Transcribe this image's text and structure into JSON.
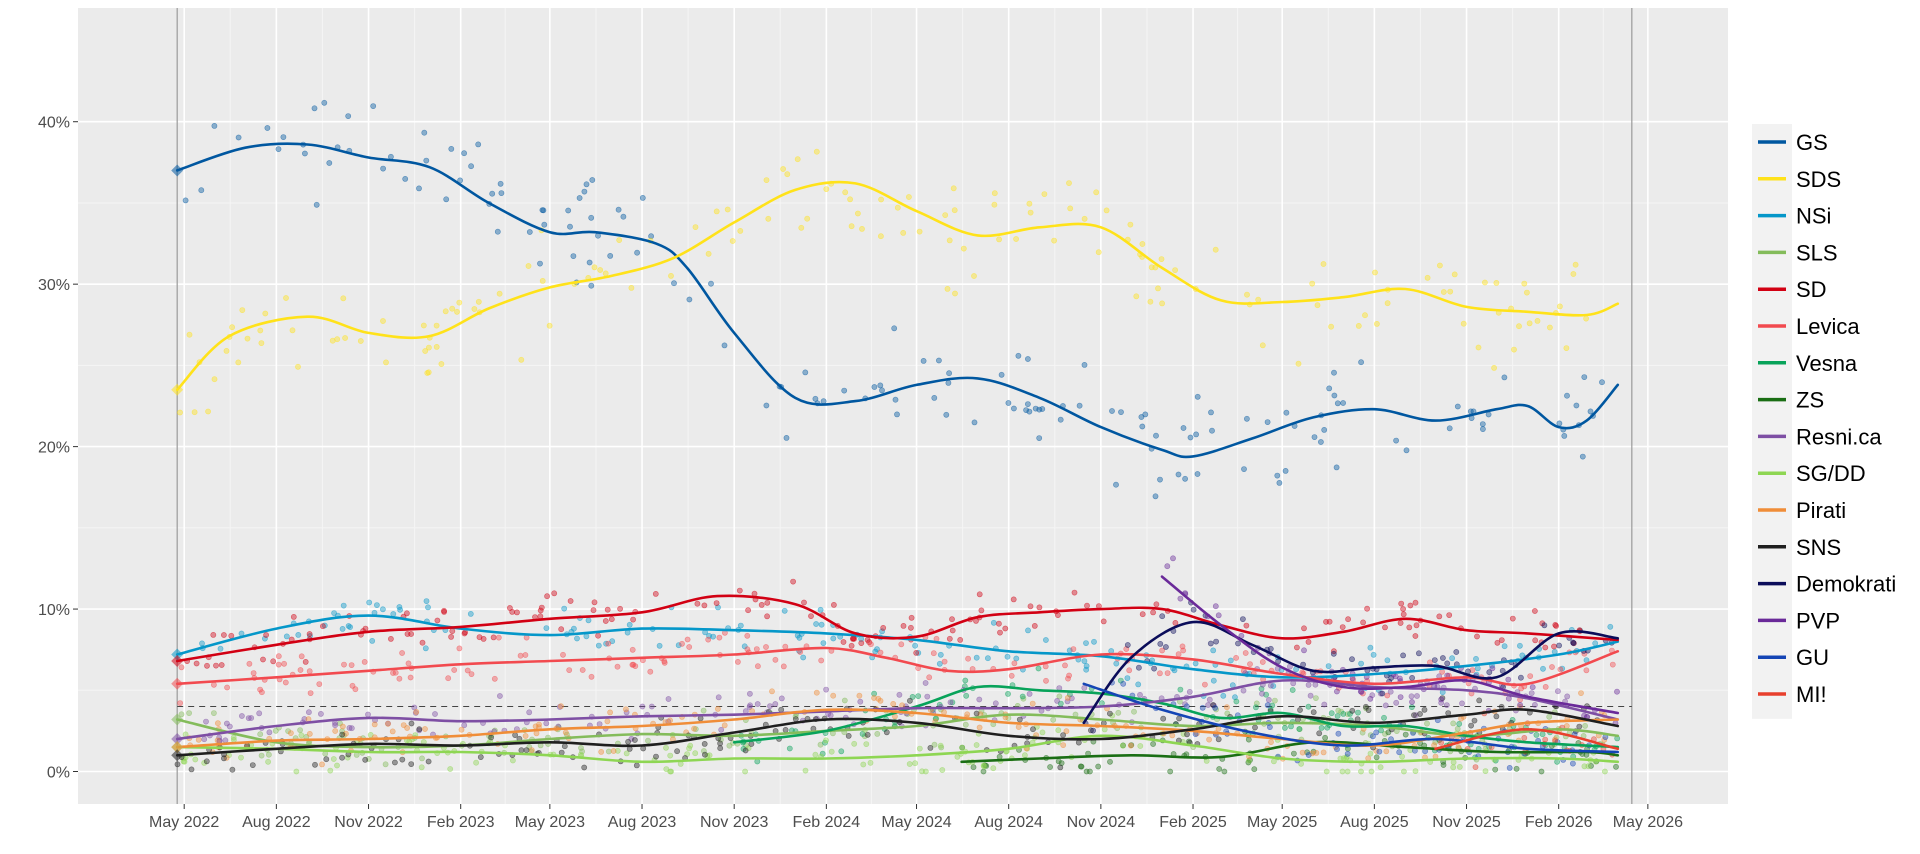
{
  "chart_data": {
    "type": "line",
    "title": "",
    "xlabel": "",
    "ylabel": "",
    "x_range": [
      "2022-01-15",
      "2026-07-20"
    ],
    "ylim": [
      -2,
      47
    ],
    "grid": true,
    "legend_position": "right",
    "x_ticks": [
      {
        "date": "2022-05-01",
        "label": "May 2022"
      },
      {
        "date": "2022-08-01",
        "label": "Aug 2022"
      },
      {
        "date": "2022-11-01",
        "label": "Nov 2022"
      },
      {
        "date": "2023-02-01",
        "label": "Feb 2023"
      },
      {
        "date": "2023-05-01",
        "label": "May 2023"
      },
      {
        "date": "2023-08-01",
        "label": "Aug 2023"
      },
      {
        "date": "2023-11-01",
        "label": "Nov 2023"
      },
      {
        "date": "2024-02-01",
        "label": "Feb 2024"
      },
      {
        "date": "2024-05-01",
        "label": "May 2024"
      },
      {
        "date": "2024-08-01",
        "label": "Aug 2024"
      },
      {
        "date": "2024-11-01",
        "label": "Nov 2024"
      },
      {
        "date": "2025-02-01",
        "label": "Feb 2025"
      },
      {
        "date": "2025-05-01",
        "label": "May 2025"
      },
      {
        "date": "2025-08-01",
        "label": "Aug 2025"
      },
      {
        "date": "2025-11-01",
        "label": "Nov 2025"
      },
      {
        "date": "2026-02-01",
        "label": "Feb 2026"
      },
      {
        "date": "2026-05-01",
        "label": "May 2026"
      }
    ],
    "y_ticks": [
      {
        "value": 0,
        "label": "0%"
      },
      {
        "value": 10,
        "label": "10%"
      },
      {
        "value": 20,
        "label": "20%"
      },
      {
        "value": 30,
        "label": "30%"
      },
      {
        "value": 40,
        "label": "40%"
      }
    ],
    "reference_lines": {
      "vertical_dates": [
        "2022-04-24",
        "2026-04-15"
      ],
      "threshold_value": 4
    },
    "series": [
      {
        "name": "GS",
        "color": "#0057a0",
        "points": [
          [
            "2022-04-24",
            37
          ],
          [
            "2022-07-01",
            38.4
          ],
          [
            "2022-09-01",
            38.6
          ],
          [
            "2022-11-01",
            37.8
          ],
          [
            "2023-01-01",
            37.2
          ],
          [
            "2023-03-01",
            35
          ],
          [
            "2023-05-01",
            33.2
          ],
          [
            "2023-06-15",
            33.2
          ],
          [
            "2023-08-15",
            32.5
          ],
          [
            "2023-09-15",
            31
          ],
          [
            "2023-11-01",
            27
          ],
          [
            "2024-01-01",
            23
          ],
          [
            "2024-03-01",
            22.8
          ],
          [
            "2024-05-01",
            23.8
          ],
          [
            "2024-07-01",
            24.2
          ],
          [
            "2024-09-01",
            23
          ],
          [
            "2024-11-01",
            21.2
          ],
          [
            "2025-01-01",
            19.8
          ],
          [
            "2025-02-01",
            19.4
          ],
          [
            "2025-04-01",
            20.5
          ],
          [
            "2025-06-01",
            21.8
          ],
          [
            "2025-08-01",
            22.3
          ],
          [
            "2025-10-01",
            21.6
          ],
          [
            "2025-12-01",
            22.3
          ],
          [
            "2026-01-01",
            22.5
          ],
          [
            "2026-02-01",
            21.2
          ],
          [
            "2026-03-01",
            21.6
          ],
          [
            "2026-04-01",
            23.8
          ]
        ]
      },
      {
        "name": "SDS",
        "color": "#ffe21a",
        "points": [
          [
            "2022-04-24",
            23.5
          ],
          [
            "2022-06-15",
            26.8
          ],
          [
            "2022-09-01",
            28
          ],
          [
            "2022-11-01",
            27
          ],
          [
            "2023-01-01",
            26.8
          ],
          [
            "2023-03-01",
            28.5
          ],
          [
            "2023-05-01",
            29.8
          ],
          [
            "2023-07-01",
            30.5
          ],
          [
            "2023-09-01",
            31.6
          ],
          [
            "2023-11-01",
            33.8
          ],
          [
            "2024-01-01",
            35.8
          ],
          [
            "2024-03-01",
            36.2
          ],
          [
            "2024-05-01",
            34.5
          ],
          [
            "2024-07-01",
            33
          ],
          [
            "2024-09-01",
            33.5
          ],
          [
            "2024-11-01",
            33.5
          ],
          [
            "2025-01-01",
            31
          ],
          [
            "2025-03-01",
            29
          ],
          [
            "2025-05-01",
            28.9
          ],
          [
            "2025-07-01",
            29.2
          ],
          [
            "2025-09-01",
            29.7
          ],
          [
            "2025-11-01",
            28.6
          ],
          [
            "2026-01-01",
            28.3
          ],
          [
            "2026-03-01",
            28.1
          ],
          [
            "2026-04-01",
            28.8
          ]
        ]
      },
      {
        "name": "NSi",
        "color": "#0597c9",
        "points": [
          [
            "2022-04-24",
            7.2
          ],
          [
            "2022-08-01",
            8.8
          ],
          [
            "2022-11-01",
            9.6
          ],
          [
            "2023-02-01",
            8.8
          ],
          [
            "2023-05-01",
            8.4
          ],
          [
            "2023-08-01",
            8.8
          ],
          [
            "2023-11-01",
            8.7
          ],
          [
            "2024-02-01",
            8.5
          ],
          [
            "2024-05-01",
            8.1
          ],
          [
            "2024-08-01",
            7.4
          ],
          [
            "2024-11-01",
            7.1
          ],
          [
            "2025-02-01",
            6.3
          ],
          [
            "2025-05-01",
            5.8
          ],
          [
            "2025-08-01",
            6
          ],
          [
            "2025-11-01",
            6.5
          ],
          [
            "2026-02-01",
            7.2
          ],
          [
            "2026-04-01",
            8
          ]
        ]
      },
      {
        "name": "SLS",
        "color": "#84bc5b",
        "points": [
          [
            "2022-04-24",
            3.2
          ],
          [
            "2022-08-01",
            1.8
          ],
          [
            "2022-11-01",
            1.5
          ],
          [
            "2023-02-01",
            1.6
          ],
          [
            "2023-05-01",
            2
          ],
          [
            "2023-08-01",
            2.3
          ],
          [
            "2023-11-01",
            2.2
          ],
          [
            "2024-02-01",
            2.5
          ],
          [
            "2024-05-01",
            2.8
          ],
          [
            "2024-08-01",
            3.5
          ],
          [
            "2024-11-01",
            3.2
          ],
          [
            "2025-02-01",
            2.8
          ],
          [
            "2025-05-01",
            3
          ],
          [
            "2025-08-01",
            2.8
          ],
          [
            "2025-11-01",
            2.2
          ],
          [
            "2026-02-01",
            2.6
          ],
          [
            "2026-04-01",
            2.2
          ]
        ]
      },
      {
        "name": "SD",
        "color": "#d20013",
        "points": [
          [
            "2022-04-24",
            6.8
          ],
          [
            "2022-08-01",
            7.8
          ],
          [
            "2022-11-01",
            8.6
          ],
          [
            "2023-02-01",
            8.9
          ],
          [
            "2023-05-01",
            9.4
          ],
          [
            "2023-08-01",
            9.8
          ],
          [
            "2023-10-15",
            10.8
          ],
          [
            "2024-01-01",
            10.3
          ],
          [
            "2024-03-01",
            8.5
          ],
          [
            "2024-05-01",
            8.3
          ],
          [
            "2024-07-01",
            9.5
          ],
          [
            "2024-09-01",
            9.8
          ],
          [
            "2024-11-01",
            10
          ],
          [
            "2025-01-01",
            10
          ],
          [
            "2025-03-01",
            9
          ],
          [
            "2025-05-01",
            8.2
          ],
          [
            "2025-07-01",
            8.6
          ],
          [
            "2025-09-01",
            9.4
          ],
          [
            "2025-11-01",
            8.7
          ],
          [
            "2026-01-01",
            8.5
          ],
          [
            "2026-04-01",
            8.1
          ]
        ]
      },
      {
        "name": "Levica",
        "color": "#f24a4f",
        "points": [
          [
            "2022-04-24",
            5.4
          ],
          [
            "2022-08-01",
            5.8
          ],
          [
            "2022-11-01",
            6.2
          ],
          [
            "2023-02-01",
            6.6
          ],
          [
            "2023-05-01",
            6.8
          ],
          [
            "2023-08-01",
            7
          ],
          [
            "2023-11-01",
            7.2
          ],
          [
            "2024-02-01",
            7.6
          ],
          [
            "2024-04-01",
            7
          ],
          [
            "2024-06-01",
            6.2
          ],
          [
            "2024-08-01",
            6.3
          ],
          [
            "2024-11-01",
            7.2
          ],
          [
            "2025-02-01",
            6.9
          ],
          [
            "2025-05-01",
            6
          ],
          [
            "2025-08-01",
            5.4
          ],
          [
            "2025-11-01",
            5.8
          ],
          [
            "2026-01-01",
            5.4
          ],
          [
            "2026-04-01",
            7.4
          ]
        ]
      },
      {
        "name": "Vesna",
        "color": "#08a35a",
        "points": [
          [
            "2023-11-01",
            1.8
          ],
          [
            "2024-02-01",
            2.5
          ],
          [
            "2024-05-01",
            4
          ],
          [
            "2024-07-01",
            5.2
          ],
          [
            "2024-09-01",
            5
          ],
          [
            "2024-11-01",
            4.8
          ],
          [
            "2025-01-01",
            4.2
          ],
          [
            "2025-03-01",
            3.3
          ],
          [
            "2025-05-01",
            3.6
          ],
          [
            "2025-07-01",
            2.8
          ],
          [
            "2025-09-01",
            2.8
          ],
          [
            "2025-11-01",
            2.2
          ],
          [
            "2026-01-01",
            1.8
          ],
          [
            "2026-04-01",
            1.5
          ]
        ]
      },
      {
        "name": "ZS",
        "color": "#1a6e14",
        "points": [
          [
            "2024-06-15",
            0.6
          ],
          [
            "2024-09-01",
            0.8
          ],
          [
            "2024-12-01",
            1
          ],
          [
            "2025-03-01",
            0.9
          ],
          [
            "2025-06-01",
            1.8
          ],
          [
            "2025-09-01",
            1.5
          ],
          [
            "2025-12-01",
            1.2
          ],
          [
            "2026-03-01",
            1.2
          ],
          [
            "2026-04-01",
            1
          ]
        ]
      },
      {
        "name": "Resni.ca",
        "color": "#7e4fa4",
        "points": [
          [
            "2022-04-24",
            2
          ],
          [
            "2022-08-01",
            2.8
          ],
          [
            "2022-11-01",
            3.3
          ],
          [
            "2023-02-01",
            3.1
          ],
          [
            "2023-05-01",
            3.2
          ],
          [
            "2023-08-01",
            3.4
          ],
          [
            "2023-11-01",
            3.5
          ],
          [
            "2024-02-01",
            3.7
          ],
          [
            "2024-05-01",
            3.9
          ],
          [
            "2024-08-01",
            3.9
          ],
          [
            "2024-11-01",
            4
          ],
          [
            "2025-02-01",
            4.6
          ],
          [
            "2025-05-01",
            5.6
          ],
          [
            "2025-08-01",
            5.2
          ],
          [
            "2025-11-01",
            5
          ],
          [
            "2026-01-01",
            4.5
          ],
          [
            "2026-04-01",
            3.2
          ]
        ]
      },
      {
        "name": "SG/DD",
        "color": "#8ed653",
        "points": [
          [
            "2022-04-24",
            1.5
          ],
          [
            "2022-08-01",
            1.4
          ],
          [
            "2022-11-01",
            1.2
          ],
          [
            "2023-02-01",
            1.2
          ],
          [
            "2023-05-01",
            1
          ],
          [
            "2023-08-01",
            0.6
          ],
          [
            "2023-11-01",
            0.8
          ],
          [
            "2024-02-01",
            0.8
          ],
          [
            "2024-05-01",
            1
          ],
          [
            "2024-08-01",
            1.4
          ],
          [
            "2024-11-01",
            2.2
          ],
          [
            "2025-02-01",
            1.6
          ],
          [
            "2025-05-01",
            0.8
          ],
          [
            "2025-08-01",
            0.6
          ],
          [
            "2025-11-01",
            0.8
          ],
          [
            "2026-02-01",
            0.8
          ],
          [
            "2026-04-01",
            0.6
          ]
        ]
      },
      {
        "name": "Pirati",
        "color": "#f08d38",
        "points": [
          [
            "2022-04-24",
            1.5
          ],
          [
            "2022-08-01",
            1.9
          ],
          [
            "2022-11-01",
            2
          ],
          [
            "2023-02-01",
            2.2
          ],
          [
            "2023-05-01",
            2.6
          ],
          [
            "2023-08-01",
            2.8
          ],
          [
            "2023-11-01",
            3.2
          ],
          [
            "2024-02-01",
            3.8
          ],
          [
            "2024-05-01",
            3.6
          ],
          [
            "2024-08-01",
            3
          ],
          [
            "2024-11-01",
            2.8
          ],
          [
            "2025-02-01",
            2.5
          ],
          [
            "2025-05-01",
            2
          ],
          [
            "2025-08-01",
            1.6
          ],
          [
            "2025-11-01",
            2.4
          ],
          [
            "2026-01-01",
            3
          ],
          [
            "2026-04-01",
            3.2
          ]
        ]
      },
      {
        "name": "SNS",
        "color": "#1f1f1f",
        "points": [
          [
            "2022-04-24",
            1
          ],
          [
            "2022-08-01",
            1.4
          ],
          [
            "2022-11-01",
            1.7
          ],
          [
            "2023-02-01",
            1.6
          ],
          [
            "2023-05-01",
            1.8
          ],
          [
            "2023-08-01",
            1.6
          ],
          [
            "2023-11-01",
            2.4
          ],
          [
            "2024-02-01",
            3.2
          ],
          [
            "2024-05-01",
            3
          ],
          [
            "2024-08-01",
            2.2
          ],
          [
            "2024-11-01",
            2
          ],
          [
            "2025-02-01",
            2.6
          ],
          [
            "2025-05-01",
            3.4
          ],
          [
            "2025-08-01",
            3
          ],
          [
            "2025-11-01",
            3.5
          ],
          [
            "2026-01-01",
            3.8
          ],
          [
            "2026-04-01",
            2.8
          ]
        ]
      },
      {
        "name": "Demokrati",
        "color": "#0b0d5a",
        "points": [
          [
            "2024-10-15",
            3
          ],
          [
            "2024-12-01",
            7
          ],
          [
            "2025-02-01",
            9.2
          ],
          [
            "2025-04-01",
            7.8
          ],
          [
            "2025-06-01",
            6.2
          ],
          [
            "2025-08-01",
            6.4
          ],
          [
            "2025-10-01",
            6.5
          ],
          [
            "2025-12-01",
            5.8
          ],
          [
            "2026-02-01",
            8.5
          ],
          [
            "2026-04-01",
            8.2
          ]
        ]
      },
      {
        "name": "PVP",
        "color": "#6a2a99",
        "points": [
          [
            "2025-01-01",
            12
          ],
          [
            "2025-03-01",
            9
          ],
          [
            "2025-05-01",
            6.4
          ],
          [
            "2025-07-01",
            5.2
          ],
          [
            "2025-09-01",
            5.2
          ],
          [
            "2025-11-01",
            5.6
          ],
          [
            "2026-01-01",
            4.6
          ],
          [
            "2026-04-01",
            3.6
          ]
        ]
      },
      {
        "name": "GU",
        "color": "#1545b5",
        "points": [
          [
            "2024-10-15",
            5.4
          ],
          [
            "2025-01-01",
            3.8
          ],
          [
            "2025-04-01",
            2.4
          ],
          [
            "2025-07-01",
            1.6
          ],
          [
            "2025-10-01",
            2
          ],
          [
            "2026-01-01",
            1.4
          ],
          [
            "2026-04-01",
            1.2
          ]
        ]
      },
      {
        "name": "MI!",
        "color": "#e8402d",
        "points": [
          [
            "2025-10-01",
            1.4
          ],
          [
            "2026-01-01",
            2.6
          ],
          [
            "2026-04-01",
            1.4
          ]
        ]
      }
    ]
  }
}
